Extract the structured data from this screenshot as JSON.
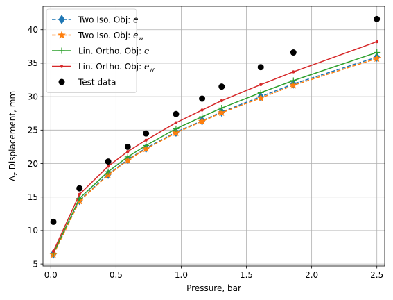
{
  "chart_data": {
    "type": "line",
    "title": "",
    "xlabel": "Pressure, bar",
    "ylabel_main": "Δ",
    "ylabel_sub": "z",
    "ylabel_rest": " Displacement, mm",
    "xlim": [
      -0.06,
      2.56
    ],
    "ylim": [
      4.7,
      43.5
    ],
    "xticks": [
      0.0,
      0.5,
      1.0,
      1.5,
      2.0,
      2.5
    ],
    "xtick_labels": [
      "0.0",
      "0.5",
      "1.0",
      "1.5",
      "2.0",
      "2.5"
    ],
    "yticks": [
      5,
      10,
      15,
      20,
      25,
      30,
      35,
      40
    ],
    "ytick_labels": [
      "5",
      "10",
      "15",
      "20",
      "25",
      "30",
      "35",
      "40"
    ],
    "grid": true,
    "legend_position": "top-left",
    "x": [
      0.02,
      0.22,
      0.44,
      0.59,
      0.73,
      0.96,
      1.16,
      1.31,
      1.61,
      1.86,
      2.5
    ],
    "series": [
      {
        "name_main": "Two Iso. Obj: ",
        "name_italic": "e",
        "name_sub": "",
        "color": "#1f77b4",
        "line_style": "dashed",
        "marker": "thin-diamond",
        "values": [
          6.5,
          14.5,
          18.4,
          20.6,
          22.3,
          24.7,
          26.4,
          27.7,
          30.0,
          31.9,
          35.9
        ]
      },
      {
        "name_main": "Two Iso. Obj: ",
        "name_italic": "e",
        "name_sub": "w",
        "color": "#ff7f0e",
        "line_style": "dashed",
        "marker": "star",
        "values": [
          6.4,
          14.4,
          18.3,
          20.5,
          22.2,
          24.6,
          26.3,
          27.6,
          29.8,
          31.7,
          35.7
        ]
      },
      {
        "name_main": "Lin. Ortho. Obj: ",
        "name_italic": "e",
        "name_sub": "",
        "color": "#2ca02c",
        "line_style": "solid",
        "marker": "plus",
        "values": [
          6.6,
          14.8,
          18.8,
          21.0,
          22.7,
          25.2,
          27.0,
          28.3,
          30.6,
          32.4,
          36.6
        ]
      },
      {
        "name_main": "Lin. Ortho. Obj: ",
        "name_italic": "e",
        "name_sub": "w",
        "color": "#d62728",
        "line_style": "solid",
        "marker": "point",
        "values": [
          6.9,
          15.4,
          19.6,
          21.8,
          23.5,
          26.1,
          28.0,
          29.4,
          31.8,
          33.7,
          38.2
        ]
      },
      {
        "name_main": "Test data",
        "name_italic": "",
        "name_sub": "",
        "color": "#000000",
        "line_style": "none",
        "marker": "circle",
        "values": [
          11.3,
          16.3,
          20.3,
          22.5,
          24.5,
          27.4,
          29.7,
          31.5,
          34.4,
          36.6,
          41.6
        ]
      }
    ]
  }
}
